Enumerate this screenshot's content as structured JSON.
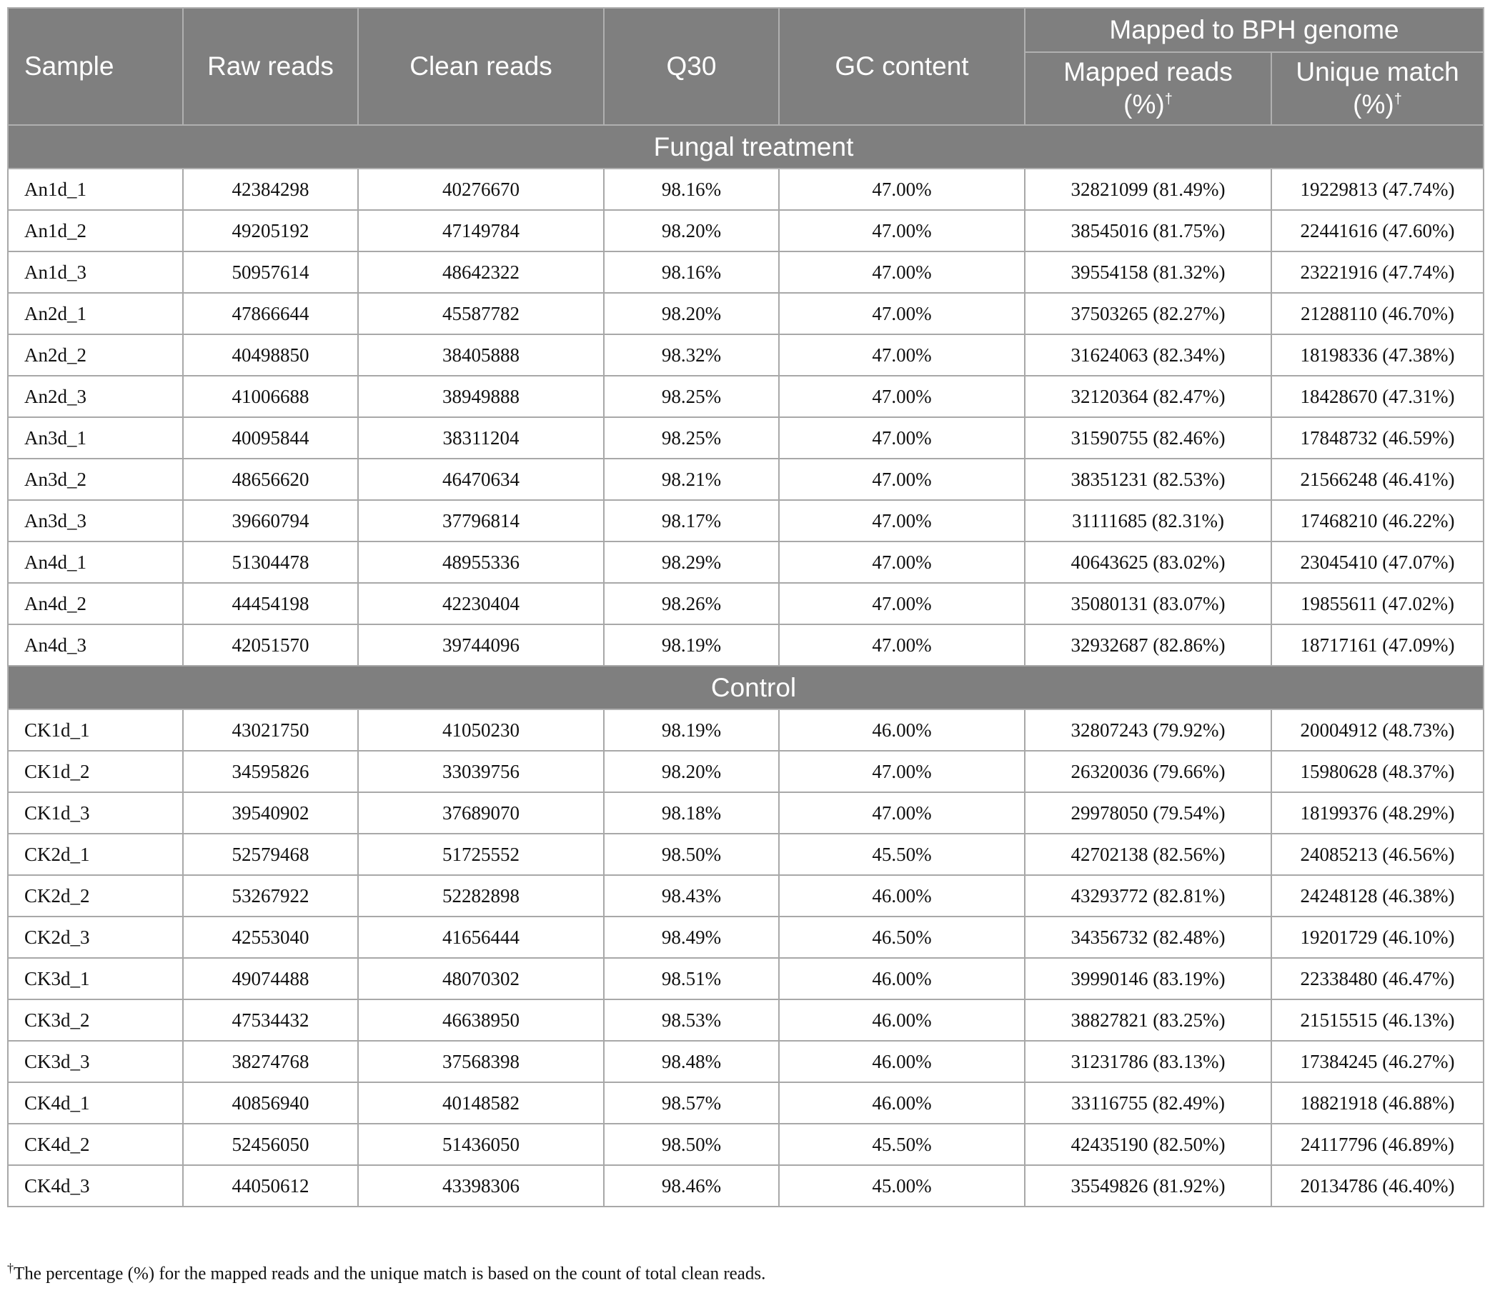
{
  "table": {
    "headers": {
      "sample": "Sample",
      "raw_reads": "Raw reads",
      "clean_reads": "Clean reads",
      "q30": "Q30",
      "gc_content": "GC content",
      "mapped_group": "Mapped to BPH genome",
      "mapped_reads_line1": "Mapped reads",
      "mapped_reads_line2": "(%)",
      "unique_match_line1": "Unique match",
      "unique_match_line2": "(%)",
      "dagger": "†"
    },
    "sections": [
      {
        "title": "Fungal treatment",
        "rows": [
          {
            "sample": "An1d_1",
            "raw": "42384298",
            "clean": "40276670",
            "q30": "98.16%",
            "gc": "47.00%",
            "mapped": "32821099 (81.49%)",
            "unique": "19229813 (47.74%)"
          },
          {
            "sample": "An1d_2",
            "raw": "49205192",
            "clean": "47149784",
            "q30": "98.20%",
            "gc": "47.00%",
            "mapped": "38545016 (81.75%)",
            "unique": "22441616 (47.60%)"
          },
          {
            "sample": "An1d_3",
            "raw": "50957614",
            "clean": "48642322",
            "q30": "98.16%",
            "gc": "47.00%",
            "mapped": "39554158 (81.32%)",
            "unique": "23221916 (47.74%)"
          },
          {
            "sample": "An2d_1",
            "raw": "47866644",
            "clean": "45587782",
            "q30": "98.20%",
            "gc": "47.00%",
            "mapped": "37503265 (82.27%)",
            "unique": "21288110 (46.70%)"
          },
          {
            "sample": "An2d_2",
            "raw": "40498850",
            "clean": "38405888",
            "q30": "98.32%",
            "gc": "47.00%",
            "mapped": "31624063 (82.34%)",
            "unique": "18198336 (47.38%)"
          },
          {
            "sample": "An2d_3",
            "raw": "41006688",
            "clean": "38949888",
            "q30": "98.25%",
            "gc": "47.00%",
            "mapped": "32120364 (82.47%)",
            "unique": "18428670 (47.31%)"
          },
          {
            "sample": "An3d_1",
            "raw": "40095844",
            "clean": "38311204",
            "q30": "98.25%",
            "gc": "47.00%",
            "mapped": "31590755 (82.46%)",
            "unique": "17848732 (46.59%)"
          },
          {
            "sample": "An3d_2",
            "raw": "48656620",
            "clean": "46470634",
            "q30": "98.21%",
            "gc": "47.00%",
            "mapped": "38351231 (82.53%)",
            "unique": "21566248 (46.41%)"
          },
          {
            "sample": "An3d_3",
            "raw": "39660794",
            "clean": "37796814",
            "q30": "98.17%",
            "gc": "47.00%",
            "mapped": "31111685 (82.31%)",
            "unique": "17468210 (46.22%)"
          },
          {
            "sample": "An4d_1",
            "raw": "51304478",
            "clean": "48955336",
            "q30": "98.29%",
            "gc": "47.00%",
            "mapped": "40643625 (83.02%)",
            "unique": "23045410 (47.07%)"
          },
          {
            "sample": "An4d_2",
            "raw": "44454198",
            "clean": "42230404",
            "q30": "98.26%",
            "gc": "47.00%",
            "mapped": "35080131 (83.07%)",
            "unique": "19855611 (47.02%)"
          },
          {
            "sample": "An4d_3",
            "raw": "42051570",
            "clean": "39744096",
            "q30": "98.19%",
            "gc": "47.00%",
            "mapped": "32932687 (82.86%)",
            "unique": "18717161 (47.09%)"
          }
        ]
      },
      {
        "title": "Control",
        "rows": [
          {
            "sample": "CK1d_1",
            "raw": "43021750",
            "clean": "41050230",
            "q30": "98.19%",
            "gc": "46.00%",
            "mapped": "32807243 (79.92%)",
            "unique": "20004912 (48.73%)"
          },
          {
            "sample": "CK1d_2",
            "raw": "34595826",
            "clean": "33039756",
            "q30": "98.20%",
            "gc": "47.00%",
            "mapped": "26320036 (79.66%)",
            "unique": "15980628 (48.37%)"
          },
          {
            "sample": "CK1d_3",
            "raw": "39540902",
            "clean": "37689070",
            "q30": "98.18%",
            "gc": "47.00%",
            "mapped": "29978050 (79.54%)",
            "unique": "18199376 (48.29%)"
          },
          {
            "sample": "CK2d_1",
            "raw": "52579468",
            "clean": "51725552",
            "q30": "98.50%",
            "gc": "45.50%",
            "mapped": "42702138 (82.56%)",
            "unique": "24085213 (46.56%)"
          },
          {
            "sample": "CK2d_2",
            "raw": "53267922",
            "clean": "52282898",
            "q30": "98.43%",
            "gc": "46.00%",
            "mapped": "43293772 (82.81%)",
            "unique": "24248128 (46.38%)"
          },
          {
            "sample": "CK2d_3",
            "raw": "42553040",
            "clean": "41656444",
            "q30": "98.49%",
            "gc": "46.50%",
            "mapped": "34356732 (82.48%)",
            "unique": "19201729 (46.10%)"
          },
          {
            "sample": "CK3d_1",
            "raw": "49074488",
            "clean": "48070302",
            "q30": "98.51%",
            "gc": "46.00%",
            "mapped": "39990146 (83.19%)",
            "unique": "22338480 (46.47%)"
          },
          {
            "sample": "CK3d_2",
            "raw": "47534432",
            "clean": "46638950",
            "q30": "98.53%",
            "gc": "46.00%",
            "mapped": "38827821 (83.25%)",
            "unique": "21515515 (46.13%)"
          },
          {
            "sample": "CK3d_3",
            "raw": "38274768",
            "clean": "37568398",
            "q30": "98.48%",
            "gc": "46.00%",
            "mapped": "31231786 (83.13%)",
            "unique": "17384245 (46.27%)"
          },
          {
            "sample": "CK4d_1",
            "raw": "40856940",
            "clean": "40148582",
            "q30": "98.57%",
            "gc": "46.00%",
            "mapped": "33116755 (82.49%)",
            "unique": "18821918 (46.88%)"
          },
          {
            "sample": "CK4d_2",
            "raw": "52456050",
            "clean": "51436050",
            "q30": "98.50%",
            "gc": "45.50%",
            "mapped": "42435190 (82.50%)",
            "unique": "24117796 (46.89%)"
          },
          {
            "sample": "CK4d_3",
            "raw": "44050612",
            "clean": "43398306",
            "q30": "98.46%",
            "gc": "45.00%",
            "mapped": "35549826 (81.92%)",
            "unique": "20134786 (46.40%)"
          }
        ]
      }
    ]
  },
  "footnote": {
    "dagger": "†",
    "text": "The percentage (%) for the mapped reads and the unique match is based on the count of total clean reads."
  }
}
